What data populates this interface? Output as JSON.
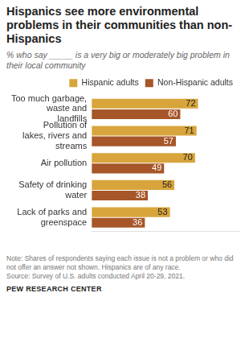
{
  "chart_data": {
    "type": "bar",
    "orientation": "horizontal",
    "title": "Hispanics see more environmental problems in their communities than non-Hispanics",
    "subtitle": "% who say _____ is a very big or moderately big problem in their local community",
    "categories": [
      "Too much garbage, waste and landfills",
      "Pollution of lakes, rivers and streams",
      "Air pollution",
      "Safety of drinking water",
      "Lack of parks and greenspace"
    ],
    "series": [
      {
        "name": "Hispanic adults",
        "color": "#d8a53c",
        "values": [
          72,
          71,
          70,
          56,
          53
        ]
      },
      {
        "name": "Non-Hispanic adults",
        "color": "#a65628",
        "values": [
          60,
          57,
          49,
          38,
          36
        ]
      }
    ],
    "xlim": [
      0,
      100
    ],
    "grid": false,
    "legend": "top",
    "data_labels": true,
    "tick_labels": "y",
    "notes": [
      "Note: Shares of respondents saying each issue is not a problem or who did not offer an answer not shown. Hispanics are of any race.",
      "Source: Survey of U.S. adults conducted April 20-29, 2021."
    ],
    "source_brand": "PEW RESEARCH CENTER"
  }
}
